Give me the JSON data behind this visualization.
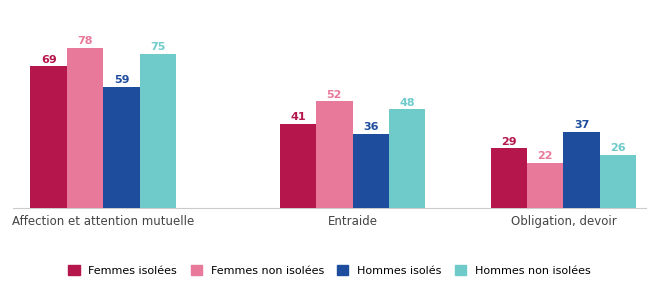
{
  "categories": [
    "Affection et attention mutuelle",
    "Entraide",
    "Obligation, devoir"
  ],
  "series": [
    {
      "label": "Femmes isolées",
      "color": "#b5164b",
      "values": [
        69,
        41,
        29
      ]
    },
    {
      "label": "Femmes non isolées",
      "color": "#e8799a",
      "values": [
        78,
        52,
        22
      ]
    },
    {
      "label": "Hommes isolés",
      "color": "#1e4d9e",
      "values": [
        59,
        36,
        37
      ]
    },
    {
      "label": "Hommes non isolées",
      "color": "#6ecbca",
      "values": [
        75,
        48,
        26
      ]
    }
  ],
  "ylim": [
    0,
    90
  ],
  "bar_width": 0.19,
  "group_positions": [
    0.45,
    1.75,
    2.85
  ],
  "label_fontsize": 8.0,
  "legend_fontsize": 8.0,
  "category_fontsize": 8.5,
  "value_fontsize": 8.0,
  "background_color": "#ffffff",
  "axis_color": "#cccccc"
}
